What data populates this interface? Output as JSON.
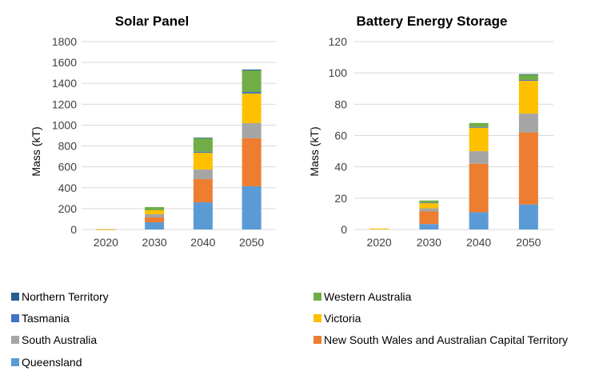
{
  "chart_data": [
    {
      "type": "bar",
      "stacked": true,
      "title": "Solar Panel",
      "xlabel": "",
      "ylabel": "Mass (kT)",
      "ylim": [
        0,
        1800
      ],
      "yticks": [
        0,
        200,
        400,
        600,
        800,
        1000,
        1200,
        1400,
        1600,
        1800
      ],
      "grid": true,
      "categories": [
        "2020",
        "2030",
        "2040",
        "2050"
      ],
      "series": [
        {
          "name": "Queensland",
          "values": [
            1,
            69,
            260,
            414
          ]
        },
        {
          "name": "New South Wales and Australian Capital Territory",
          "values": [
            1,
            46,
            222,
            460
          ]
        },
        {
          "name": "South Australia",
          "values": [
            0,
            31,
            92,
            145
          ]
        },
        {
          "name": "Victoria",
          "values": [
            1,
            38,
            161,
            283
          ]
        },
        {
          "name": "Tasmania",
          "values": [
            0,
            0,
            10,
            15
          ]
        },
        {
          "name": "Western Australia",
          "values": [
            0,
            31,
            130,
            207
          ]
        },
        {
          "name": "Northern Territory",
          "values": [
            0,
            0,
            4,
            8
          ]
        }
      ]
    },
    {
      "type": "bar",
      "stacked": true,
      "title": "Battery Energy Storage",
      "xlabel": "",
      "ylabel": "Mass (kT)",
      "ylim": [
        0,
        120
      ],
      "yticks": [
        0,
        20,
        40,
        60,
        80,
        100,
        120
      ],
      "grid": true,
      "categories": [
        "2020",
        "2030",
        "2040",
        "2050"
      ],
      "series": [
        {
          "name": "Queensland",
          "values": [
            0,
            3.5,
            11,
            16
          ]
        },
        {
          "name": "New South Wales and Australian Capital Territory",
          "values": [
            0,
            8,
            31,
            46
          ]
        },
        {
          "name": "South Australia",
          "values": [
            0,
            2,
            8,
            12
          ]
        },
        {
          "name": "Victoria",
          "values": [
            0.6,
            3.5,
            15,
            21
          ]
        },
        {
          "name": "Tasmania",
          "values": [
            0,
            0.2,
            0.5,
            0.5
          ]
        },
        {
          "name": "Western Australia",
          "values": [
            0,
            1.3,
            2.5,
            3.5
          ]
        },
        {
          "name": "Northern Territory",
          "values": [
            0,
            0,
            0,
            0.2
          ]
        }
      ]
    }
  ],
  "colors": {
    "Queensland": "#5b9bd5",
    "New South Wales and Australian Capital Territory": "#ed7d31",
    "South Australia": "#a5a5a5",
    "Victoria": "#ffc000",
    "Tasmania": "#4472c4",
    "Western Australia": "#70ad47",
    "Northern Territory": "#255e91"
  },
  "legend": {
    "placement": "bottom",
    "items": [
      {
        "label": "Northern Territory",
        "color": "#255e91"
      },
      {
        "label": "Western Australia",
        "color": "#70ad47"
      },
      {
        "label": "Tasmania",
        "color": "#4472c4"
      },
      {
        "label": "Victoria",
        "color": "#ffc000"
      },
      {
        "label": "South Australia",
        "color": "#a5a5a5"
      },
      {
        "label": "New South Wales and Australian Capital Territory",
        "color": "#ed7d31"
      },
      {
        "label": "Queensland",
        "color": "#5b9bd5"
      }
    ]
  }
}
